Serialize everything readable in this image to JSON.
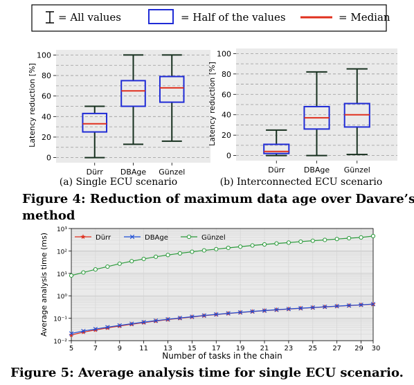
{
  "legend_box": {
    "all_values": "= All values",
    "half_values": "= Half  of the values",
    "median": "= Median",
    "box_color": "#1f2bd6",
    "median_color": "#e0301e"
  },
  "figure4": {
    "caption": "Figure 4: Reduction of maximum data age over Davare’s method",
    "caption_line1": "Figure 4: Reduction of maximum data age over Davare’s",
    "caption_line2": "method"
  },
  "figure5": {
    "caption": "Figure 5: Average analysis time for single ECU scenario."
  },
  "chart_data": [
    {
      "type": "box",
      "subcaption": "(a) Single ECU scenario",
      "ylabel": "Latency reduction [%]",
      "ylim": [
        -5,
        105
      ],
      "yticks": [
        "0",
        "20",
        "40",
        "60",
        "80",
        "100"
      ],
      "categories": [
        "Dürr",
        "DBAge",
        "Günzel"
      ],
      "boxes": [
        {
          "min": 0,
          "q1": 25,
          "median": 33,
          "q3": 43,
          "max": 50
        },
        {
          "min": 13,
          "q1": 50,
          "median": 65,
          "q3": 75,
          "max": 100
        },
        {
          "min": 16,
          "q1": 54,
          "median": 68,
          "q3": 79,
          "max": 100
        }
      ],
      "grid": true
    },
    {
      "type": "box",
      "subcaption": "(b) Interconnected ECU scenario",
      "ylabel": "Latency reduction [%]",
      "ylim": [
        -5,
        105
      ],
      "yticks": [
        "0",
        "20",
        "40",
        "60",
        "80",
        "100"
      ],
      "categories": [
        "Dürr",
        "DBAge",
        "Günzel"
      ],
      "boxes": [
        {
          "min": 0,
          "q1": 2,
          "median": 4,
          "q3": 11,
          "max": 25
        },
        {
          "min": 0,
          "q1": 26,
          "median": 37,
          "q3": 48,
          "max": 82
        },
        {
          "min": 1,
          "q1": 28,
          "median": 40,
          "q3": 51,
          "max": 85
        }
      ],
      "grid": true
    },
    {
      "type": "line",
      "xlabel": "Number of tasks in the chain",
      "ylabel": "Average analysis time (ms)",
      "yscale": "log",
      "ylim": [
        0.01,
        1000
      ],
      "xlim": [
        5,
        30
      ],
      "xticks": [
        5,
        7,
        9,
        11,
        13,
        15,
        17,
        19,
        21,
        23,
        25,
        27,
        29,
        30
      ],
      "yticks": [
        0.01,
        0.1,
        1,
        10,
        100,
        1000
      ],
      "ytick_labels": [
        "10⁻²",
        "10⁻¹",
        "10⁰",
        "10¹",
        "10²",
        "10³"
      ],
      "x": [
        5,
        6,
        7,
        8,
        9,
        10,
        11,
        12,
        13,
        14,
        15,
        16,
        17,
        18,
        19,
        20,
        21,
        22,
        23,
        24,
        25,
        26,
        27,
        28,
        29,
        30
      ],
      "series": [
        {
          "name": "Dürr",
          "color": "#e0301e",
          "marker": "star",
          "values": [
            0.018,
            0.024,
            0.03,
            0.037,
            0.045,
            0.054,
            0.064,
            0.075,
            0.087,
            0.1,
            0.114,
            0.13,
            0.146,
            0.163,
            0.18,
            0.198,
            0.217,
            0.236,
            0.256,
            0.276,
            0.297,
            0.32,
            0.343,
            0.367,
            0.392,
            0.42
          ]
        },
        {
          "name": "DBAge",
          "color": "#1f4fd6",
          "marker": "x",
          "values": [
            0.021,
            0.027,
            0.033,
            0.04,
            0.048,
            0.057,
            0.067,
            0.078,
            0.09,
            0.103,
            0.117,
            0.133,
            0.149,
            0.166,
            0.183,
            0.201,
            0.22,
            0.24,
            0.26,
            0.28,
            0.301,
            0.324,
            0.347,
            0.371,
            0.396,
            0.43
          ]
        },
        {
          "name": "Günzel",
          "color": "#2a9a3a",
          "marker": "circle",
          "values": [
            8,
            11,
            15,
            20,
            27,
            35,
            44,
            55,
            66,
            78,
            92,
            106,
            120,
            137,
            155,
            175,
            195,
            215,
            235,
            260,
            285,
            310,
            340,
            370,
            400,
            460
          ]
        }
      ],
      "legend_position": "top-left",
      "grid": true
    }
  ]
}
